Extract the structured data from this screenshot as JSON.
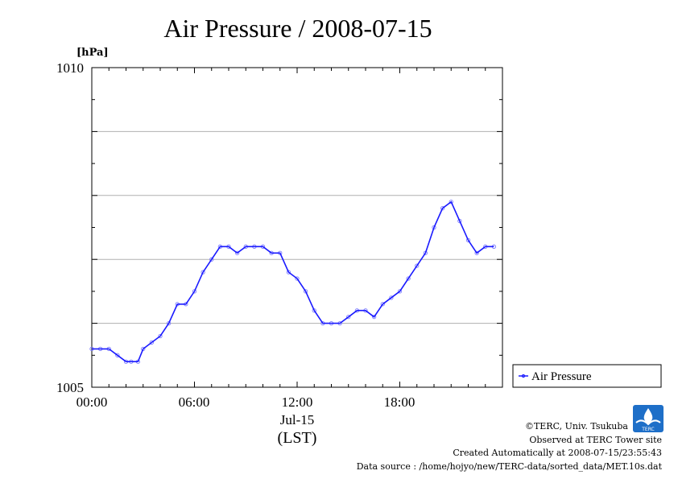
{
  "chart_data": {
    "type": "line",
    "title": "Air Pressure / 2008-07-15",
    "ylabel": "[hPa]",
    "xlabel": "Jul-15",
    "xlabel_note": "(LST)",
    "ylim": [
      1005,
      1010
    ],
    "xlim": [
      0,
      24
    ],
    "y_ticks": [
      "1010",
      "1005"
    ],
    "x_ticks": [
      "00:00",
      "06:00",
      "12:00",
      "18:00"
    ],
    "grid": true,
    "legend_position": "right",
    "series": [
      {
        "name": "Air Pressure",
        "color": "#1a1aff",
        "x": [
          0,
          0.5,
          1,
          1.5,
          2,
          2.3,
          2.7,
          3,
          3.5,
          4,
          4.5,
          5,
          5.5,
          6,
          6.5,
          7,
          7.5,
          8,
          8.5,
          9,
          9.5,
          10,
          10.5,
          11,
          11.5,
          12,
          12.5,
          13,
          13.5,
          14,
          14.5,
          15,
          15.5,
          16,
          16.5,
          17,
          17.5,
          18,
          18.5,
          19,
          19.5,
          20,
          20.5,
          21,
          21.5,
          22,
          22.5,
          23,
          23.5
        ],
        "y": [
          1005.6,
          1005.6,
          1005.6,
          1005.5,
          1005.4,
          1005.4,
          1005.4,
          1005.6,
          1005.7,
          1005.8,
          1006.0,
          1006.3,
          1006.3,
          1006.5,
          1006.8,
          1007.0,
          1007.2,
          1007.2,
          1007.1,
          1007.2,
          1007.2,
          1007.2,
          1007.1,
          1007.1,
          1006.8,
          1006.7,
          1006.5,
          1006.2,
          1006.0,
          1006.0,
          1006.0,
          1006.1,
          1006.2,
          1006.2,
          1006.1,
          1006.3,
          1006.4,
          1006.5,
          1006.7,
          1006.9,
          1007.1,
          1007.5,
          1007.8,
          1007.9,
          1007.6,
          1007.3,
          1007.1,
          1007.2,
          1007.2
        ]
      }
    ]
  },
  "credits": {
    "copyright": "©TERC, Univ. Tsukuba",
    "observed": "Observed at TERC Tower site",
    "created": "Created Automatically at 2008-07-15/23:55:43",
    "source": "Data source : /home/hojyo/new/TERC-data/sorted_data/MET.10s.dat"
  },
  "logo": {
    "text": "TERC",
    "color": "#1e6fc8"
  }
}
